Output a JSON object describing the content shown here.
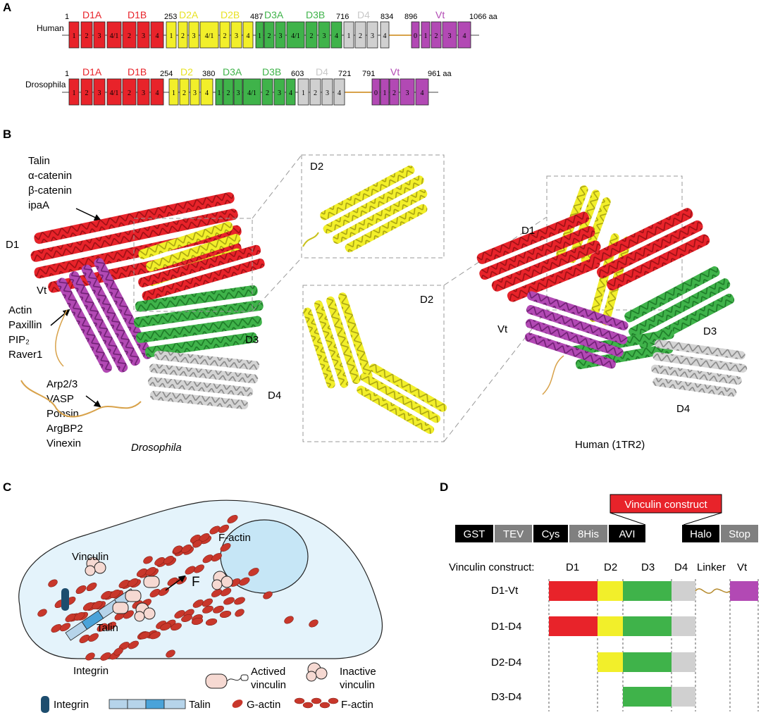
{
  "colors": {
    "red": "#e8232a",
    "yellow": "#f2ef2a",
    "green": "#3fb34a",
    "gray": "#d0d0d0",
    "magenta": "#b249b4",
    "linker": "#d8a24a",
    "cell_fill": "#e4f3fb",
    "nucleus": "#c6e6f6",
    "actin": "#c8372b",
    "talin_dark": "#4aa3d9",
    "talin_light": "#b6d4ea",
    "integrin": "#1d4d6e",
    "vinculin": "#f6d9d2",
    "construct_label_bg": "#e8232a",
    "tag_black": "#000000",
    "tag_gray": "#808080"
  },
  "panel_labels": [
    "A",
    "B",
    "C",
    "D"
  ],
  "panel_a": {
    "human": {
      "label": "Human",
      "numbers": [
        "1",
        "253",
        "487",
        "716",
        "834",
        "896",
        "1066 aa"
      ],
      "domains": [
        "D1A",
        "D1B",
        "D2A",
        "D2B",
        "D3A",
        "D3B",
        "D4",
        "Vt"
      ],
      "segments": [
        "1",
        "2",
        "3",
        "4/1",
        "2",
        "3",
        "4",
        "1",
        "2",
        "3",
        "4/1",
        "2",
        "3",
        "4",
        "1",
        "2",
        "3",
        "4/1",
        "2",
        "3",
        "4",
        "1",
        "2",
        "3",
        "4",
        "0",
        "1",
        "2",
        "3",
        "4"
      ]
    },
    "drosophila": {
      "label": "Drosophila",
      "numbers": [
        "1",
        "254",
        "380",
        "603",
        "721",
        "791",
        "961 aa"
      ],
      "domains": [
        "D1A",
        "D1B",
        "D2",
        "D3A",
        "D3B",
        "D4",
        "Vt"
      ],
      "segments": [
        "1",
        "2",
        "3",
        "4/1",
        "2",
        "3",
        "4",
        "1",
        "2",
        "3",
        "4",
        "1",
        "2",
        "3",
        "4/1",
        "2",
        "3",
        "4",
        "1",
        "2",
        "3",
        "4",
        "0",
        "1",
        "2",
        "3",
        "4"
      ]
    }
  },
  "panel_b": {
    "partners_top": [
      "Talin",
      "α-catenin",
      "β-catenin",
      "ipaA"
    ],
    "partners_mid": [
      "Actin",
      "Paxillin",
      "PIP₂",
      "Raver1"
    ],
    "partners_bottom": [
      "Arp2/3",
      "VASP",
      "Ponsin",
      "ArgBP2",
      "Vinexin"
    ],
    "left_domains": [
      "D1",
      "Vt",
      "D3",
      "D4"
    ],
    "left_caption": "Drosophila",
    "inset_labels": [
      "D2",
      "D2"
    ],
    "right_domains": [
      "D1",
      "Vt",
      "D3",
      "D4"
    ],
    "right_caption": "Human (1TR2)"
  },
  "panel_c": {
    "labels": {
      "vinculin": "Vinculin",
      "f_actin": "F-actin",
      "force": "F",
      "talin": "Talin",
      "integrin": "Integrin"
    },
    "legend": {
      "actived": "Actived\nvinculin",
      "actived_1": "Actived",
      "actived_2": "vinculin",
      "inactive_1": "Inactive",
      "inactive_2": "vinculin",
      "integrin": "Integrin",
      "talin": "Talin",
      "g_actin": "G-actin",
      "f_actin": "F-actin"
    }
  },
  "panel_d": {
    "construct_title": "Vinculin construct",
    "tags_left": [
      "GST",
      "TEV",
      "Cys",
      "8His",
      "AVI"
    ],
    "tags_right": [
      "Halo",
      "Stop"
    ],
    "header": [
      "Vinculin construct:",
      "D1",
      "D2",
      "D3",
      "D4",
      "Linker",
      "Vt"
    ],
    "rows": [
      "D1-Vt",
      "D1-D4",
      "D2-D4",
      "D3-D4"
    ]
  }
}
